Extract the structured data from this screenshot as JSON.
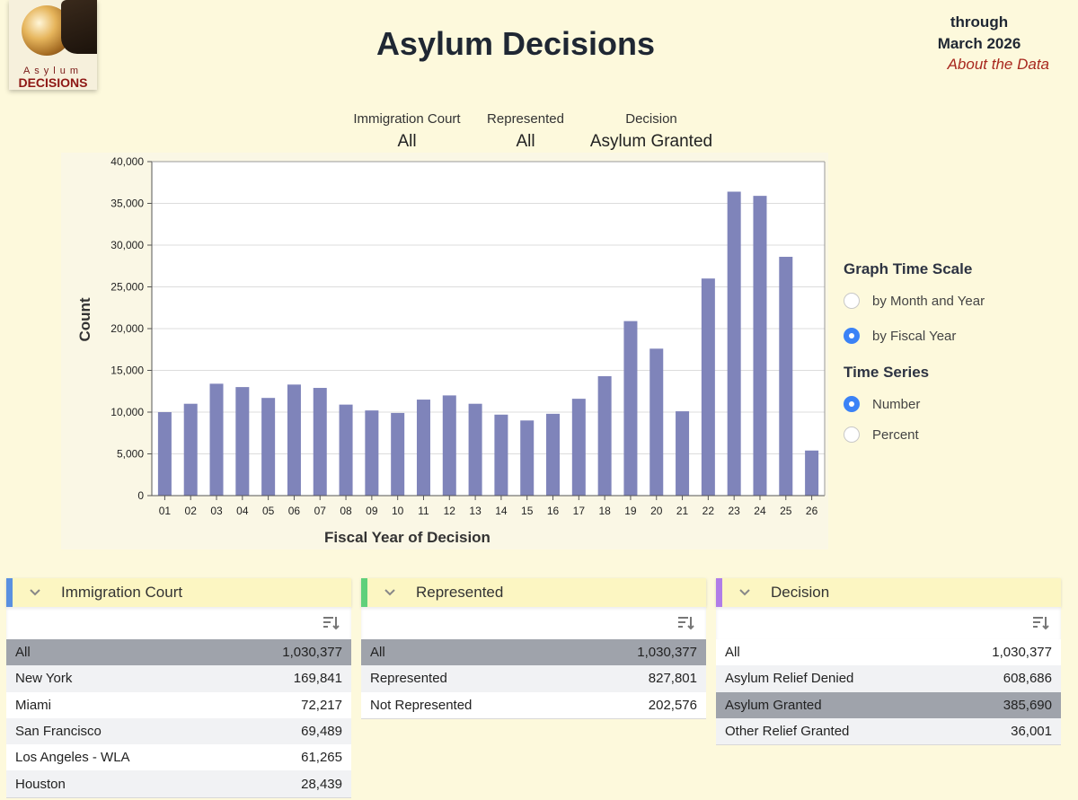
{
  "header": {
    "logo_line1": "Asylum",
    "logo_line2": "DECISIONS",
    "title": "Asylum Decisions",
    "through_label": "through",
    "through_date": "March 2026",
    "about_link": "About the Data"
  },
  "filters": [
    {
      "label": "Immigration Court",
      "value": "All"
    },
    {
      "label": "Represented",
      "value": "All"
    },
    {
      "label": "Decision",
      "value": "Asylum Granted"
    }
  ],
  "controls": {
    "time_scale_title": "Graph Time Scale",
    "time_scale_options": [
      "by Month and Year",
      "by Fiscal Year"
    ],
    "time_scale_selected": "by Fiscal Year",
    "series_title": "Time Series",
    "series_options": [
      "Number",
      "Percent"
    ],
    "series_selected": "Number"
  },
  "chart_data": {
    "type": "bar",
    "categories": [
      "01",
      "02",
      "03",
      "04",
      "05",
      "06",
      "07",
      "08",
      "09",
      "10",
      "11",
      "12",
      "13",
      "14",
      "15",
      "16",
      "17",
      "18",
      "19",
      "20",
      "21",
      "22",
      "23",
      "24",
      "25",
      "26"
    ],
    "values": [
      10000,
      11000,
      13400,
      13000,
      11700,
      13300,
      12900,
      10900,
      10200,
      9900,
      11500,
      12000,
      11000,
      9700,
      9000,
      9800,
      11600,
      14300,
      20900,
      17600,
      10100,
      26000,
      36400,
      35900,
      28600,
      5400
    ],
    "xlabel": "Fiscal Year of Decision",
    "ylabel": "Count",
    "ylim": [
      0,
      40000
    ],
    "yticks": [
      0,
      5000,
      10000,
      15000,
      20000,
      25000,
      30000,
      35000,
      40000
    ],
    "ytick_labels": [
      "0",
      "5,000",
      "10,000",
      "15,000",
      "20,000",
      "25,000",
      "30,000",
      "35,000",
      "40,000"
    ],
    "grid": true,
    "bar_color": "#7f84ba"
  },
  "tables": [
    {
      "title": "Immigration Court",
      "accent": "#5a90e0",
      "rows": [
        {
          "label": "All",
          "value": "1,030,377",
          "selected": true
        },
        {
          "label": "New York",
          "value": "169,841"
        },
        {
          "label": "Miami",
          "value": "72,217"
        },
        {
          "label": "San Francisco",
          "value": "69,489"
        },
        {
          "label": "Los Angeles - WLA",
          "value": "61,265"
        },
        {
          "label": "Houston",
          "value": "28,439"
        }
      ]
    },
    {
      "title": "Represented",
      "accent": "#5fd07b",
      "rows": [
        {
          "label": "All",
          "value": "1,030,377",
          "selected": true
        },
        {
          "label": "Represented",
          "value": "827,801"
        },
        {
          "label": "Not Represented",
          "value": "202,576"
        }
      ]
    },
    {
      "title": "Decision",
      "accent": "#b07de8",
      "rows": [
        {
          "label": "All",
          "value": "1,030,377"
        },
        {
          "label": "Asylum Relief Denied",
          "value": "608,686"
        },
        {
          "label": "Asylum Granted",
          "value": "385,690",
          "selected": true
        },
        {
          "label": "Other Relief Granted",
          "value": "36,001"
        }
      ]
    }
  ]
}
